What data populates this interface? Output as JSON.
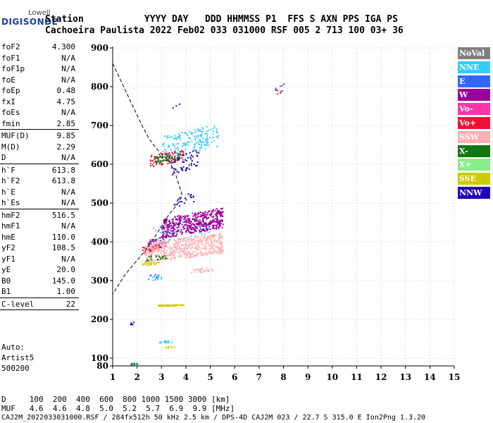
{
  "header": {
    "logo_top": "Lowell",
    "logo_main": "DIGISONDE",
    "line1": "Station           YYYY DAY   DDD HHMMSS P1  FFS S AXN PPS IGA PS",
    "line2": "Cachoeira Paulista 2022 Feb02 033 031000 RSF 005 2 713 100 03+ 36"
  },
  "params": [
    {
      "name": "foF2",
      "value": "4.300"
    },
    {
      "name": "foF1",
      "value": "N/A"
    },
    {
      "name": "foF1p",
      "value": "N/A"
    },
    {
      "name": "foE",
      "value": "N/A"
    },
    {
      "name": "foEp",
      "value": "0.48"
    },
    {
      "name": "fxI",
      "value": "4.75"
    },
    {
      "name": "foEs",
      "value": "N/A"
    },
    {
      "name": "fmin",
      "value": "2.85"
    },
    {
      "name": "MUF(D)",
      "value": "9.85"
    },
    {
      "name": "M(D)",
      "value": "2.29"
    },
    {
      "name": "D",
      "value": "N/A"
    },
    {
      "name": "h`F",
      "value": "613.8"
    },
    {
      "name": "h`F2",
      "value": "613.8"
    },
    {
      "name": "h`E",
      "value": "N/A"
    },
    {
      "name": "h`Es",
      "value": "N/A"
    },
    {
      "name": "hmF2",
      "value": "516.5"
    },
    {
      "name": "hmF1",
      "value": "N/A"
    },
    {
      "name": "hmE",
      "value": "110.0"
    },
    {
      "name": "yF2",
      "value": "108.5"
    },
    {
      "name": "yF1",
      "value": "N/A"
    },
    {
      "name": "yE",
      "value": "20.0"
    },
    {
      "name": "B0",
      "value": "145.0"
    },
    {
      "name": "B1",
      "value": "1.00"
    },
    {
      "name": "C-level",
      "value": "22"
    }
  ],
  "auto": {
    "line1": "Auto:",
    "line2": "Artist5",
    "line3": "500200"
  },
  "legend": [
    {
      "label": "NoVal",
      "bg": "#808080",
      "fg": "#ffffff"
    },
    {
      "label": "NNE",
      "bg": "#33ccff",
      "fg": "#ffffff"
    },
    {
      "label": "E",
      "bg": "#3366ff",
      "fg": "#ffffff"
    },
    {
      "label": "W",
      "bg": "#990099",
      "fg": "#ffffff"
    },
    {
      "label": "Vo-",
      "bg": "#ff33aa",
      "fg": "#ffffff"
    },
    {
      "label": "Vo+",
      "bg": "#ee1133",
      "fg": "#ffffff"
    },
    {
      "label": "SSW",
      "bg": "#ffb0b0",
      "fg": "#ffffff"
    },
    {
      "label": "X-",
      "bg": "#117711",
      "fg": "#ffffff"
    },
    {
      "label": "X+",
      "bg": "#88ee88",
      "fg": "#ffffff"
    },
    {
      "label": "SSE",
      "bg": "#cccc00",
      "fg": "#ffffff"
    },
    {
      "label": "NNW",
      "bg": "#2200bb",
      "fg": "#ffffff"
    }
  ],
  "footer": {
    "row_d": "D     100  200  400  600  800 1000 1500 3000 [km]",
    "row_muf": "MUF   4.6  4.6  4.8  5.0  5.2  5.7  6.9  9.9 [MHz]",
    "file_line": "CAJ2M_2022033031000.RSF / 284fx512h 50 kHz 2.5 km / DPS-4D CAJ2M 023 / 22.7 S 315.0 E Ion2Png 1.3.20"
  },
  "chart_data": {
    "type": "scatter",
    "title": "",
    "xlabel": "",
    "ylabel": "",
    "xlim": [
      1,
      15
    ],
    "ylim": [
      80,
      900
    ],
    "x_ticks": [
      1,
      2,
      3,
      4,
      5,
      6,
      7,
      8,
      9,
      10,
      11,
      12,
      13,
      14,
      15
    ],
    "y_ticks": [
      80,
      100,
      200,
      300,
      400,
      500,
      600,
      700,
      800,
      900
    ],
    "grid": "dotted",
    "series": [
      {
        "name": "NNE",
        "color": "#33ccff",
        "regions": [
          {
            "f": [
              3.0,
              5.3
            ],
            "h": [
              615,
              705
            ],
            "n": 170
          },
          {
            "f": [
              2.6,
              5.0
            ],
            "h": [
              395,
              470
            ],
            "n": 60
          },
          {
            "f": [
              2.3,
              3.0
            ],
            "h": [
              300,
              315
            ],
            "n": 14
          },
          {
            "f": [
              2.9,
              3.5
            ],
            "h": [
              140,
              148
            ],
            "n": 15
          },
          {
            "f": [
              1.65,
              1.9
            ],
            "h": [
              85,
              92
            ],
            "n": 6
          }
        ]
      },
      {
        "name": "E",
        "color": "#3366ff",
        "regions": [
          {
            "f": [
              7.6,
              8.0
            ],
            "h": [
              780,
              810
            ],
            "n": 6
          },
          {
            "f": [
              2.4,
              2.9
            ],
            "h": [
              305,
              320
            ],
            "n": 6
          }
        ]
      },
      {
        "name": "W",
        "color": "#990099",
        "regions": [
          {
            "f": [
              3.0,
              5.5
            ],
            "h": [
              410,
              490
            ],
            "n": 480
          },
          {
            "f": [
              2.4,
              3.2
            ],
            "h": [
              375,
              420
            ],
            "n": 60
          }
        ]
      },
      {
        "name": "Vo+",
        "color": "#ee1133",
        "regions": [
          {
            "f": [
              2.5,
              3.9
            ],
            "h": [
              595,
              640
            ],
            "n": 90
          },
          {
            "f": [
              2.2,
              3.0
            ],
            "h": [
              370,
              400
            ],
            "n": 40
          },
          {
            "f": [
              7.7,
              8.05
            ],
            "h": [
              770,
              820
            ],
            "n": 5
          }
        ]
      },
      {
        "name": "SSW",
        "color": "#ffb0b0",
        "regions": [
          {
            "f": [
              2.3,
              5.5
            ],
            "h": [
              345,
              425
            ],
            "n": 520
          },
          {
            "f": [
              4.0,
              5.1
            ],
            "h": [
              320,
              335
            ],
            "n": 25
          }
        ]
      },
      {
        "name": "X-",
        "color": "#117711",
        "regions": [
          {
            "f": [
              2.7,
              3.8
            ],
            "h": [
              605,
              630
            ],
            "n": 45
          },
          {
            "f": [
              2.3,
              3.2
            ],
            "h": [
              350,
              370
            ],
            "n": 20
          },
          {
            "f": [
              1.7,
              2.0
            ],
            "h": [
              82,
              88
            ],
            "n": 8
          }
        ]
      },
      {
        "name": "SSE",
        "color": "#cccc00",
        "regions": [
          {
            "f": [
              2.8,
              3.9
            ],
            "h": [
              235,
              240
            ],
            "n": 60
          },
          {
            "f": [
              2.2,
              2.9
            ],
            "h": [
              340,
              350
            ],
            "n": 25
          },
          {
            "f": [
              3.1,
              3.6
            ],
            "h": [
              128,
              132
            ],
            "n": 8
          }
        ]
      },
      {
        "name": "NNW",
        "color": "#2200bb",
        "regions": [
          {
            "f": [
              3.3,
              4.5
            ],
            "h": [
              570,
              640
            ],
            "n": 55
          },
          {
            "f": [
              3.5,
              4.3
            ],
            "h": [
              490,
              530
            ],
            "n": 20
          },
          {
            "f": [
              3.4,
              4.0
            ],
            "h": [
              740,
              760
            ],
            "n": 3
          },
          {
            "f": [
              1.7,
              1.85
            ],
            "h": [
              185,
              195
            ],
            "n": 6
          }
        ]
      }
    ],
    "profile_curve": {
      "style": "dashed",
      "x": [
        1.0,
        1.3,
        1.6,
        1.9,
        2.2,
        2.5,
        2.8,
        3.1,
        3.3,
        3.6,
        3.85,
        3.7,
        3.3,
        3.0,
        2.7,
        2.3,
        1.9,
        1.5,
        1.2,
        1.0
      ],
      "y": [
        860,
        820,
        780,
        740,
        700,
        665,
        640,
        620,
        610,
        570,
        520,
        500,
        470,
        440,
        410,
        375,
        345,
        315,
        285,
        265
      ]
    }
  }
}
